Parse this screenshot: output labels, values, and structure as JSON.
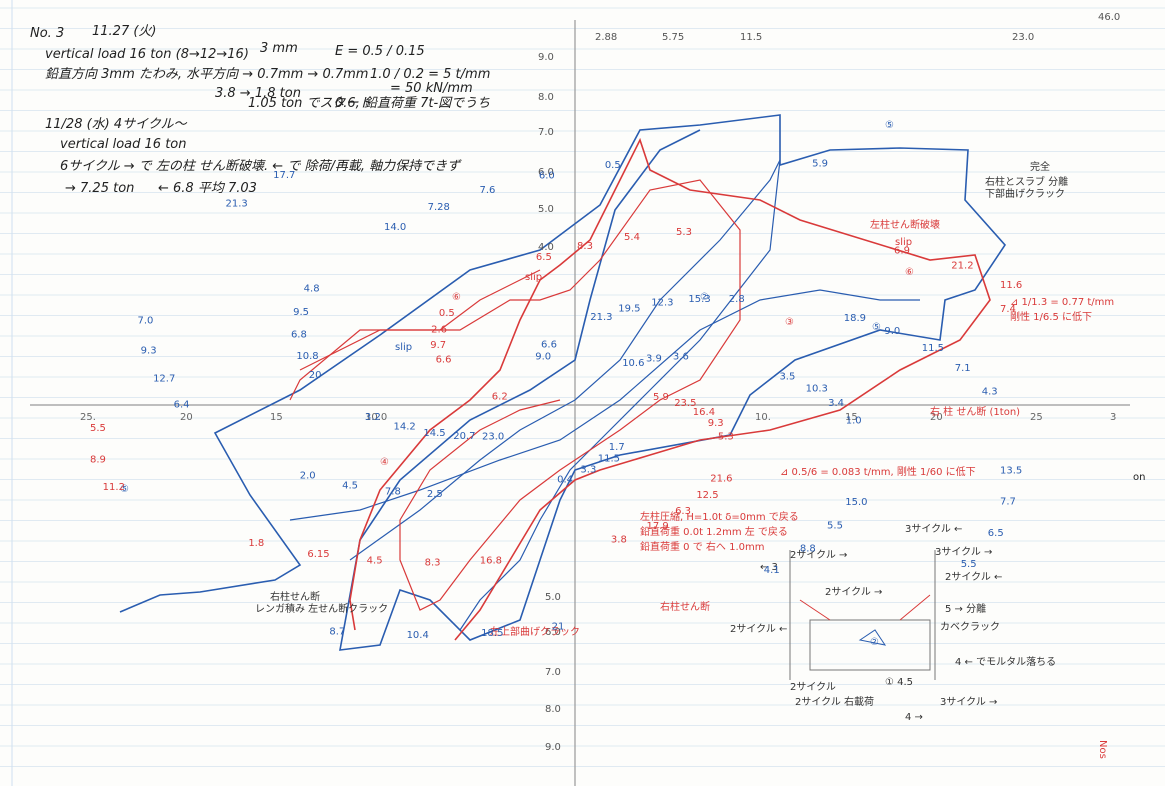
{
  "header": {
    "lines": [
      "No. 3",
      "11.27 (火)",
      "vertical load 16 ton (8→12→16)",
      "3 mm",
      "E = 0.5 / 0.15",
      "鉛直方向 3mm たわみ, 水平方向 → 0.7mm → 0.7mm",
      "1.0 / 0.2 = 5 t/mm",
      "= 50 kN/mm",
      "3.8 → 1.8 ton",
      "1.05 ton でスタート",
      "0.6, 鉛直荷重 7t-図でうち",
      "11/28 (水) 4サイクル〜",
      "vertical load 16 ton",
      "6サイクル → で 左の柱 せん断破壊. ← で 除荷/再載, 軸力保持できず",
      "→ 7.25 ton",
      "← 6.8  平均 7.03"
    ]
  },
  "axes": {
    "top": [
      "2.88",
      "5.75",
      "11.5",
      "23.0",
      "46.0"
    ],
    "y_up": [
      "9.0",
      "8.0",
      "7.0",
      "6.0",
      "5.0",
      "4.0"
    ],
    "y_down": [
      "5.0",
      "6.0",
      "7.0",
      "8.0",
      "9.0"
    ],
    "x_left": [
      "25.",
      "20",
      "15",
      "10.0"
    ],
    "x_right": [
      "10.",
      "15",
      "20",
      "25",
      "3"
    ]
  },
  "notes": [
    "完全",
    "右柱とスラブ 分離",
    "下部曲げクラック",
    "左柱せん断破壊",
    "slip",
    "⊿ 1/1.3 = 0.77 t/mm",
    "剛性 1/6.5 に低下",
    "⊿ 0.5/6 = 0.083 t/mm, 剛性 1/60 に低下",
    "左柱圧縮, H=1.0t δ=0mm で戻る",
    "鉛直荷重 0.0t 1.2mm 左 で戻る",
    "鉛直荷重 0 で 右へ 1.0mm",
    "右柱せん断",
    "左上部曲げクラック",
    "レンガ積み 左せん断クラック",
    "右柱せん断",
    "右 柱 せん断 (1ton)",
    "slip",
    "slip"
  ],
  "legend": [
    "3サイクル ←",
    "2サイクル →",
    "3サイクル →",
    "2サイクル ←",
    "2サイクル →",
    "5 → 分離",
    "カベクラック",
    "4 ← でモルタル落ちる",
    "2サイクル",
    "① 4.5",
    "3サイクル →",
    "2サイクル 右載荷",
    "4 →",
    "← 3",
    "2サイクル ←"
  ],
  "circled": [
    "⑥",
    "⑤",
    "②",
    "③",
    "④",
    "⑤",
    "⑥",
    "⑤",
    "②"
  ],
  "point_labels": [
    "5.9",
    "23.0",
    "21.3",
    "21.6",
    "20",
    "18.9",
    "16.8",
    "14.0",
    "13.5",
    "11.2",
    "5.9",
    "1.7",
    "6.6",
    "3.5",
    "2.5",
    "6.5",
    "15.0",
    "6.4",
    "6.9",
    "21",
    "21.3",
    "23.5",
    "20.7",
    "19.5",
    "12.5",
    "10.8",
    "9.0",
    "8.3",
    "7.28",
    "7.7",
    "8.9",
    "10.6",
    "11.5",
    "9.7",
    "10.3",
    "7.8",
    "8.3",
    "5.5",
    "12.7",
    "21.2",
    "18.5",
    "17.7",
    "16.4",
    "14.5",
    "12.3",
    "6.3",
    "6.8",
    "11.5",
    "4.5",
    "7.6",
    "6.5",
    "5.5",
    "3.9",
    "3.3",
    "2.6",
    "3.4",
    "4.5",
    "5.4",
    "8.8",
    "9.3",
    "11.6",
    "10.4",
    "9.0",
    "9.3",
    "14.2",
    "15.3",
    "17.9",
    "9.5",
    "7.1",
    "6.15",
    "6.0",
    "5.5",
    "6.2",
    "3.6",
    "0.4",
    "0.5",
    "1.0",
    "2.0",
    "5.3",
    "4.1",
    "7.0",
    "7.4",
    "8.7",
    "6.6",
    "5.3",
    "3.2",
    "2.8",
    "3.8",
    "4.8",
    "4.3",
    "1.8",
    "0.5"
  ],
  "margin": "on",
  "stamp": "Nos"
}
